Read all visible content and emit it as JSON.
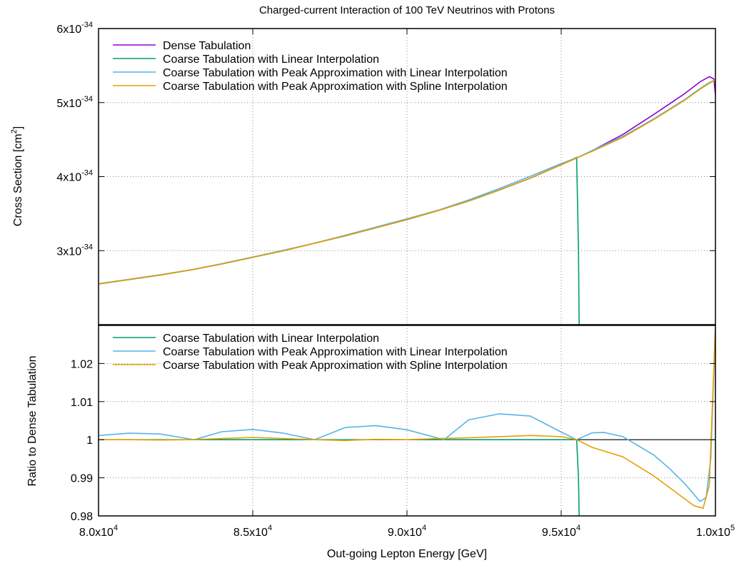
{
  "chart_data": [
    {
      "type": "line",
      "panel": "top",
      "title": "Charged-current Interaction of 100 TeV Neutrinos with Protons",
      "xlabel": "",
      "ylabel": "Cross Section [cm²]",
      "xlim": [
        80000,
        100000
      ],
      "ylim": [
        2e-34,
        6e-34
      ],
      "y_ticks": [
        {
          "value": 3e-34,
          "mantissa": "3x10",
          "exp": "-34"
        },
        {
          "value": 4e-34,
          "mantissa": "4x10",
          "exp": "-34"
        },
        {
          "value": 5e-34,
          "mantissa": "5x10",
          "exp": "-34"
        },
        {
          "value": 6e-34,
          "mantissa": "6x10",
          "exp": "-34"
        }
      ],
      "grid": true,
      "legend_position": "top-left",
      "series": [
        {
          "name": "Dense Tabulation",
          "color": "#9400d3",
          "x": [
            80000,
            81000,
            82000,
            83000,
            84000,
            85000,
            86000,
            87000,
            88000,
            89000,
            90000,
            91000,
            92000,
            93000,
            94000,
            95000,
            95600,
            96000,
            97000,
            98000,
            99000,
            99500,
            99800,
            99950,
            100000
          ],
          "y": [
            2.55e-34,
            2.61e-34,
            2.67e-34,
            2.74e-34,
            2.82e-34,
            2.91e-34,
            3e-34,
            3.1e-34,
            3.2e-34,
            3.31e-34,
            3.42e-34,
            3.54e-34,
            3.67e-34,
            3.82e-34,
            3.98e-34,
            4.16e-34,
            4.27e-34,
            4.35e-34,
            4.57e-34,
            4.84e-34,
            5.12e-34,
            5.28e-34,
            5.35e-34,
            5.32e-34,
            5.1e-34
          ]
        },
        {
          "name": "Coarse Tabulation with Linear Interpolation",
          "color": "#009e73",
          "x": [
            80000,
            81000,
            82000,
            83000,
            84000,
            85000,
            86000,
            87000,
            88000,
            89000,
            90000,
            91000,
            92000,
            93000,
            94000,
            95000,
            95500,
            95560,
            95580
          ],
          "y": [
            2.55e-34,
            2.61e-34,
            2.67e-34,
            2.74e-34,
            2.82e-34,
            2.91e-34,
            3e-34,
            3.1e-34,
            3.2e-34,
            3.31e-34,
            3.42e-34,
            3.54e-34,
            3.67e-34,
            3.82e-34,
            3.98e-34,
            4.16e-34,
            4.26e-34,
            3e-34,
            2e-34
          ]
        },
        {
          "name": "Coarse Tabulation with Peak Approximation with Linear Interpolation",
          "color": "#56b4e9",
          "x": [
            80000,
            81000,
            82000,
            83000,
            84000,
            85000,
            86000,
            87000,
            88000,
            89000,
            90000,
            91000,
            92000,
            93000,
            94000,
            95000,
            95600,
            96000,
            97000,
            98000,
            99000,
            99500,
            99800,
            100000
          ],
          "y": [
            2.553e-34,
            2.614e-34,
            2.675e-34,
            2.741e-34,
            2.825e-34,
            2.915e-34,
            3.005e-34,
            3.101e-34,
            3.208e-34,
            3.32e-34,
            3.43e-34,
            3.545e-34,
            3.685e-34,
            3.84e-34,
            4.005e-34,
            4.175e-34,
            4.271e-34,
            4.351e-34,
            4.545e-34,
            4.78e-34,
            5.04e-34,
            5.19e-34,
            5.27e-34,
            5.31e-34
          ]
        },
        {
          "name": "Coarse Tabulation with Peak Approximation with Spline Interpolation",
          "color": "#e69f00",
          "x": [
            80000,
            81000,
            82000,
            83000,
            84000,
            85000,
            86000,
            87000,
            88000,
            89000,
            90000,
            91000,
            92000,
            93000,
            94000,
            95000,
            95600,
            96000,
            97000,
            98000,
            99000,
            99500,
            99800,
            100000
          ],
          "y": [
            2.55e-34,
            2.61e-34,
            2.67e-34,
            2.74e-34,
            2.82e-34,
            2.91e-34,
            3e-34,
            3.1e-34,
            3.2e-34,
            3.31e-34,
            3.42e-34,
            3.54e-34,
            3.67e-34,
            3.82e-34,
            3.98e-34,
            4.16e-34,
            4.27e-34,
            4.34e-34,
            4.53e-34,
            4.77e-34,
            5.03e-34,
            5.18e-34,
            5.26e-34,
            5.31e-34
          ]
        }
      ]
    },
    {
      "type": "line",
      "panel": "bottom",
      "title": "",
      "xlabel": "Out-going Lepton Energy [GeV]",
      "ylabel": "Ratio to Dense Tabulation",
      "xlim": [
        80000,
        100000
      ],
      "ylim": [
        0.98,
        1.03
      ],
      "x_ticks": [
        {
          "value": 80000,
          "mantissa": "8.0x10",
          "exp": "4"
        },
        {
          "value": 85000,
          "mantissa": "8.5x10",
          "exp": "4"
        },
        {
          "value": 90000,
          "mantissa": "9.0x10",
          "exp": "4"
        },
        {
          "value": 95000,
          "mantissa": "9.5x10",
          "exp": "4"
        },
        {
          "value": 100000,
          "mantissa": "1.0x10",
          "exp": "5"
        }
      ],
      "y_ticks": [
        {
          "value": 0.98,
          "label": "0.98"
        },
        {
          "value": 0.99,
          "label": "0.99"
        },
        {
          "value": 1.0,
          "label": "1"
        },
        {
          "value": 1.01,
          "label": "1.01"
        },
        {
          "value": 1.02,
          "label": "1.02"
        }
      ],
      "grid": true,
      "legend_position": "top-left",
      "reference_line": 1.0,
      "series": [
        {
          "name": "Coarse Tabulation with Linear Interpolation",
          "color": "#009e73",
          "x": [
            80000,
            85000,
            90000,
            95000,
            95500,
            95560,
            95580
          ],
          "y": [
            1.0,
            1.0,
            1.0,
            1.0,
            1.0,
            0.99,
            0.98
          ]
        },
        {
          "name": "Coarse Tabulation with Peak Approximation with Linear Interpolation",
          "color": "#56b4e9",
          "x": [
            80000,
            81000,
            82000,
            83100,
            84000,
            85000,
            86000,
            87000,
            88000,
            89000,
            90000,
            91200,
            92000,
            93000,
            94000,
            95000,
            95500,
            96000,
            96400,
            97000,
            98000,
            98500,
            99000,
            99500,
            99700,
            99850,
            100000
          ],
          "y": [
            1.0011,
            1.0017,
            1.0015,
            1.0,
            1.0021,
            1.0027,
            1.0017,
            1.0,
            1.0032,
            1.0037,
            1.0026,
            1.0,
            1.0052,
            1.0068,
            1.0062,
            1.002,
            1.0,
            1.0018,
            1.0019,
            1.0008,
            0.996,
            0.9925,
            0.9885,
            0.9838,
            0.9848,
            0.995,
            1.03
          ]
        },
        {
          "name": "Coarse Tabulation with Peak Approximation with Spline Interpolation",
          "color": "#e69f00",
          "x": [
            80000,
            81000,
            82000,
            83000,
            84000,
            85000,
            86000,
            87000,
            88000,
            89000,
            90000,
            91000,
            92000,
            93000,
            94000,
            95000,
            95500,
            96000,
            97000,
            98000,
            99000,
            99300,
            99600,
            99800,
            100000
          ],
          "y": [
            1.0,
            1.0,
            0.9999,
            1.0,
            1.0003,
            1.0006,
            1.0003,
            1.0,
            0.9998,
            1.0001,
            1.0,
            1.0003,
            1.0005,
            1.0008,
            1.0011,
            1.0008,
            1.0,
            0.998,
            0.9955,
            0.9905,
            0.9845,
            0.9827,
            0.982,
            0.988,
            1.03
          ]
        }
      ]
    }
  ]
}
